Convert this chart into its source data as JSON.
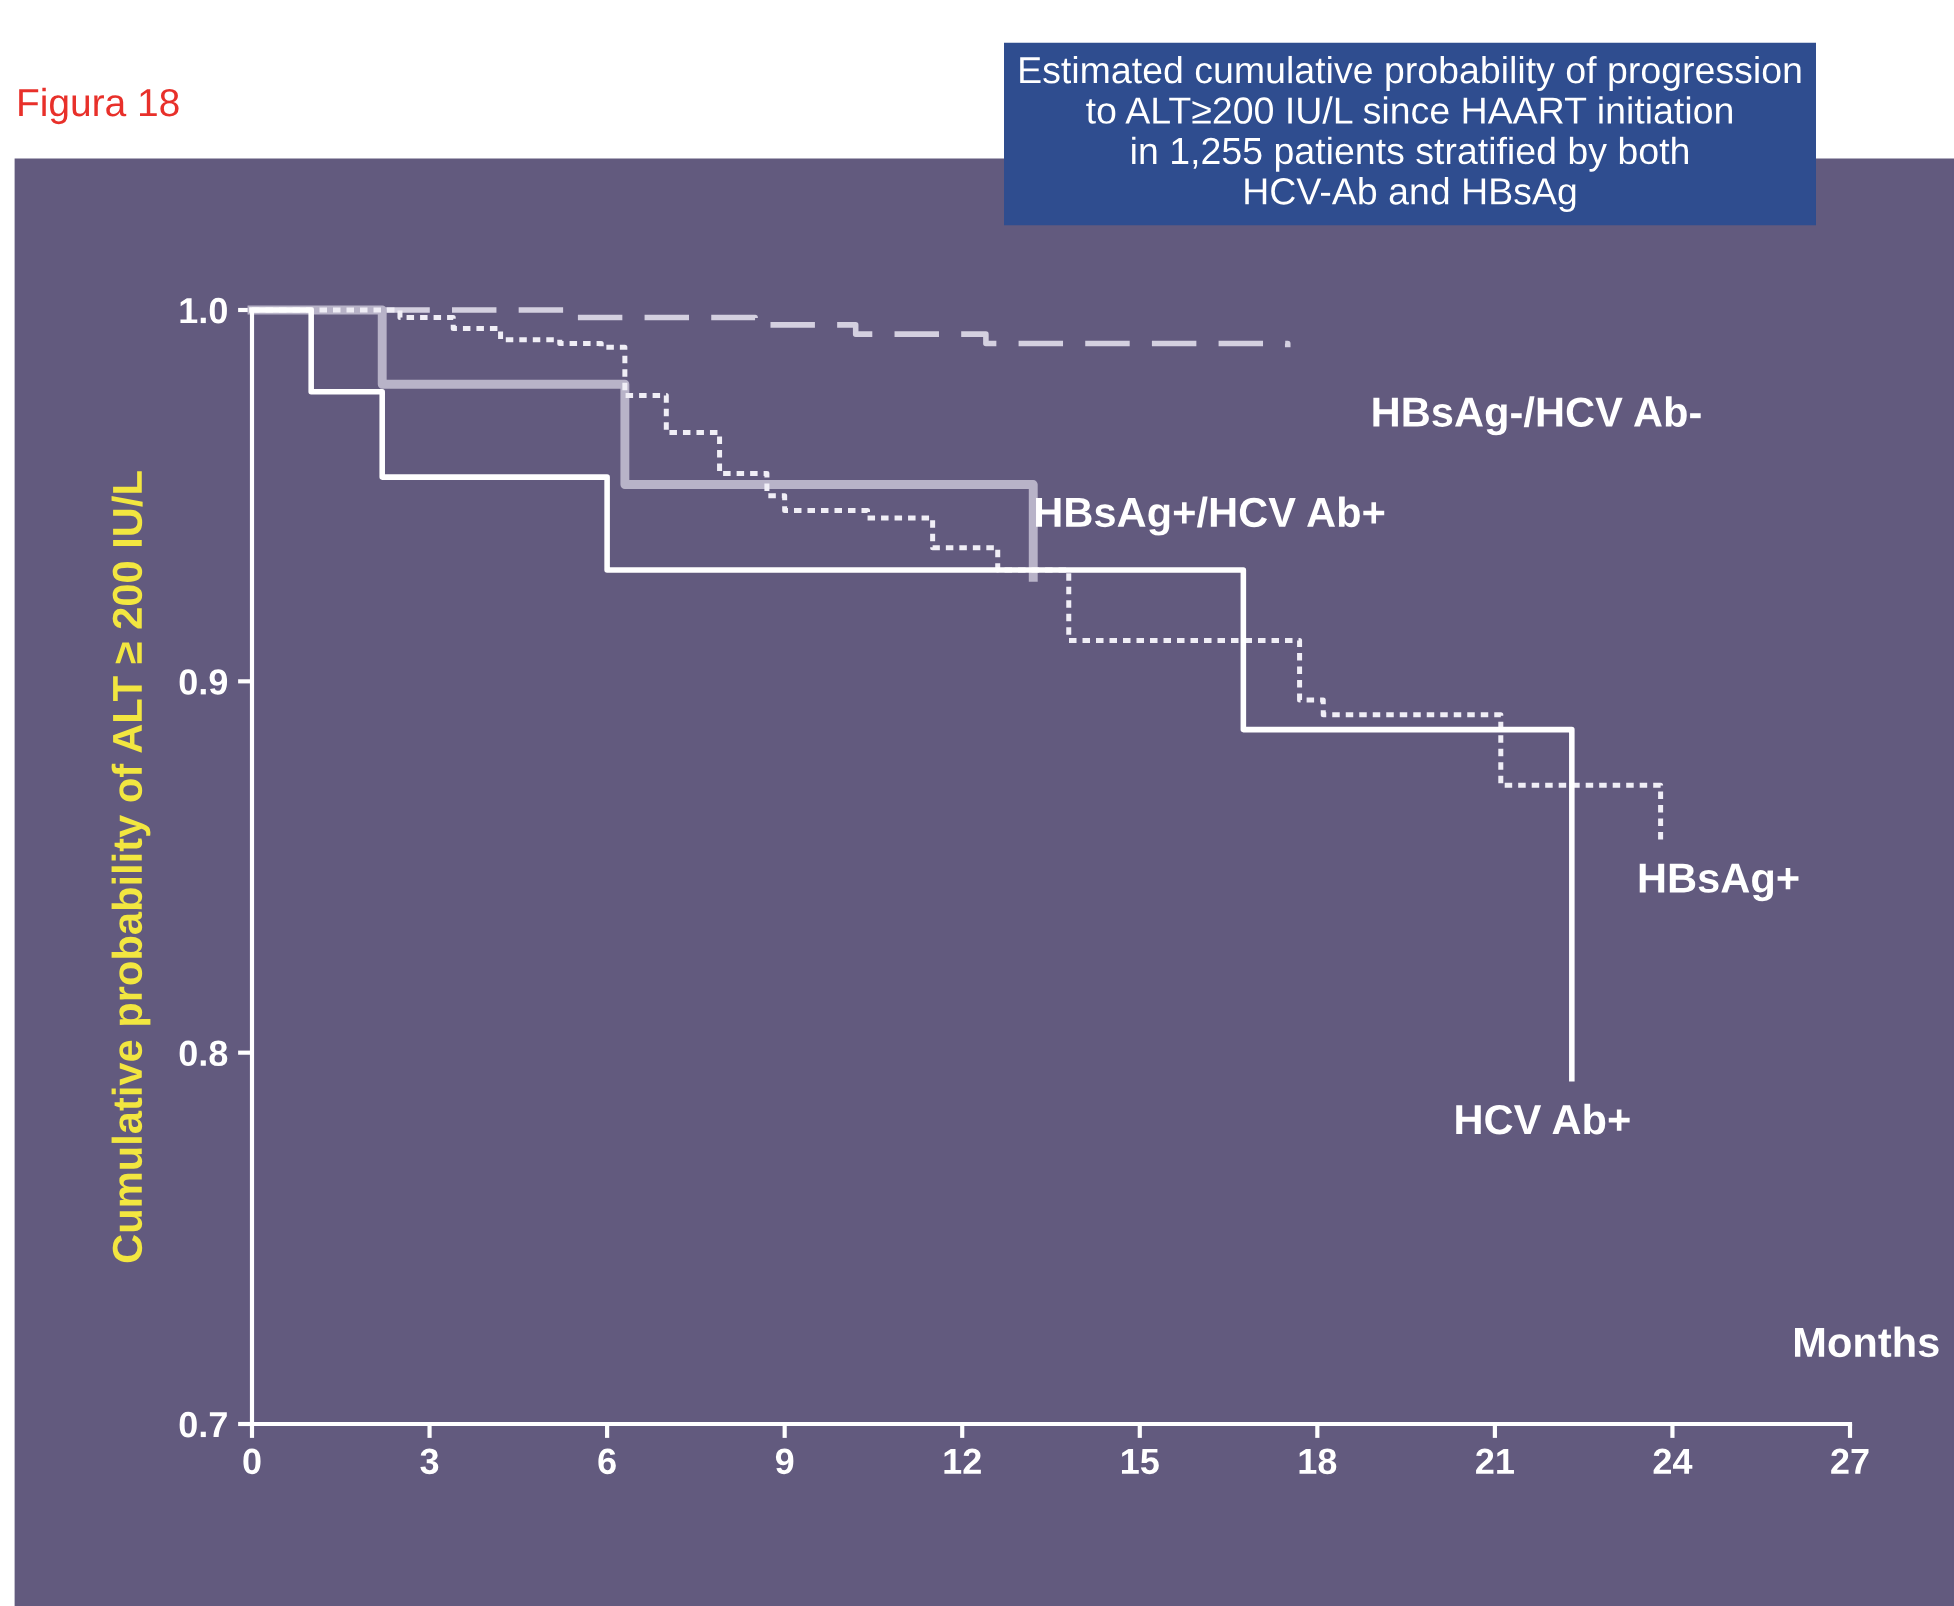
{
  "chart_data": {
    "type": "step",
    "title": "Estimated cumulative probability of progression\nto ALT≥200 IU/L since HAART initiation\nin 1,255 patients stratified by both\nHCV-Ab and HBsAg",
    "xlabel": "Months",
    "ylabel": "Cumulative probability of ALT ≥ 200 IU/L",
    "annotations": [
      "Figura 18"
    ],
    "xlim": [
      0,
      27
    ],
    "xticks": [
      0,
      3,
      6,
      9,
      12,
      15,
      18,
      21,
      24,
      27
    ],
    "ylim": [
      0.7,
      1.0
    ],
    "yticks": [
      0.7,
      0.8,
      0.9,
      {
        "value": 1.0,
        "label": "1.0"
      }
    ],
    "grid": false,
    "legend": false,
    "marker": "none",
    "series": [
      {
        "name": "HBsAg-/HCV Ab-",
        "color": "#d4d0e0",
        "line_style": "dashed",
        "x": [
          0,
          5.3,
          8.5,
          10.2,
          12.4,
          17.5
        ],
        "values": [
          1.0,
          0.998,
          0.996,
          0.9935,
          0.991,
          0.99
        ]
      },
      {
        "name": "HBsAg+/HCV Ab+",
        "color": "#b8b3c8",
        "line_style": "solid",
        "x": [
          0,
          2.2,
          6.3,
          13.2
        ],
        "values": [
          1.0,
          0.98,
          0.953,
          0.928
        ]
      },
      {
        "name": "HBsAg+",
        "color": "#f0eef6",
        "line_style": "dotted",
        "x": [
          0,
          2.3,
          2.5,
          3.4,
          4.2,
          5.2,
          5.9,
          6.3,
          7.0,
          7.9,
          8.7,
          9.0,
          10.4,
          11.5,
          12.6,
          13.8,
          16.75,
          17.7,
          18.1,
          20.0,
          21.1,
          23.8
        ],
        "values": [
          1.0,
          1.0,
          0.998,
          0.995,
          0.992,
          0.991,
          0.99,
          0.977,
          0.967,
          0.956,
          0.95,
          0.946,
          0.944,
          0.936,
          0.93,
          0.911,
          0.911,
          0.895,
          0.891,
          0.891,
          0.872,
          0.857
        ]
      },
      {
        "name": "HCV Ab+",
        "color": "#ffffff",
        "line_style": "solid",
        "x": [
          0,
          1.0,
          2.2,
          6.0,
          16.75,
          22.3
        ],
        "values": [
          1.0,
          0.978,
          0.955,
          0.93,
          0.887,
          0.793
        ]
      }
    ]
  }
}
